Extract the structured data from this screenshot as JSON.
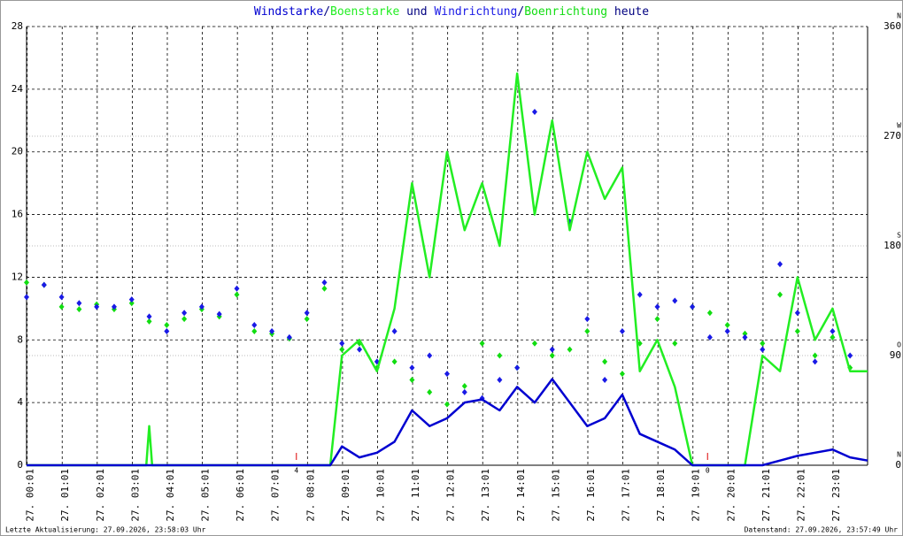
{
  "chart_data": {
    "type": "line",
    "title_connectors": [
      "/",
      " und ",
      "/",
      " heute"
    ],
    "xlim": [
      "00:00",
      "24:00"
    ],
    "xticks": [
      {
        "value": "00:01",
        "label": "27. 00:01"
      },
      {
        "value": "01:01",
        "label": "27. 01:01"
      },
      {
        "value": "02:01",
        "label": "27. 02:01"
      },
      {
        "value": "03:01",
        "label": "27. 03:01"
      },
      {
        "value": "04:01",
        "label": "27. 04:01"
      },
      {
        "value": "05:01",
        "label": "27. 05:01"
      },
      {
        "value": "06:01",
        "label": "27. 06:01"
      },
      {
        "value": "07:01",
        "label": "27. 07:01"
      },
      {
        "value": "08:01",
        "label": "27. 08:01"
      },
      {
        "value": "09:01",
        "label": "27. 09:01"
      },
      {
        "value": "10:01",
        "label": "27. 10:01"
      },
      {
        "value": "11:01",
        "label": "27. 11:01"
      },
      {
        "value": "12:01",
        "label": "27. 12:01"
      },
      {
        "value": "13:01",
        "label": "27. 13:01"
      },
      {
        "value": "14:01",
        "label": "27. 14:01"
      },
      {
        "value": "15:01",
        "label": "27. 15:01"
      },
      {
        "value": "16:01",
        "label": "27. 16:01"
      },
      {
        "value": "17:01",
        "label": "27. 17:01"
      },
      {
        "value": "18:01",
        "label": "27. 18:01"
      },
      {
        "value": "19:01",
        "label": "27. 19:01"
      },
      {
        "value": "20:01",
        "label": "27. 20:01"
      },
      {
        "value": "21:01",
        "label": "27. 21:01"
      },
      {
        "value": "22:01",
        "label": "27. 22:01"
      },
      {
        "value": "23:01",
        "label": "27. 23:01"
      }
    ],
    "ylim": [
      0,
      28
    ],
    "yticks": [
      0,
      4,
      8,
      12,
      16,
      20,
      24,
      28
    ],
    "y2lim": [
      0,
      360
    ],
    "y2ticks": [
      0,
      90,
      180,
      270,
      360
    ],
    "y2tick_directions": [
      "N",
      "O",
      "S",
      "W",
      "N"
    ],
    "grid": true,
    "line_x": [
      "00:00",
      "03:25",
      "03:30",
      "03:35",
      "08:40",
      "09:00",
      "09:30",
      "10:00",
      "10:30",
      "11:00",
      "11:30",
      "12:00",
      "12:30",
      "13:00",
      "13:30",
      "14:00",
      "14:30",
      "15:00",
      "15:30",
      "16:00",
      "16:30",
      "17:00",
      "17:30",
      "18:00",
      "18:30",
      "19:00",
      "19:30",
      "20:00",
      "20:30",
      "21:00",
      "21:30",
      "22:00",
      "22:30",
      "23:00",
      "23:30",
      "24:00"
    ],
    "scatter_x": [
      "00:00",
      "00:30",
      "01:00",
      "01:30",
      "02:00",
      "02:30",
      "03:00",
      "03:30",
      "04:00",
      "04:30",
      "05:00",
      "05:30",
      "06:00",
      "06:30",
      "07:00",
      "07:30",
      "08:00",
      "08:30",
      "09:00",
      "09:30",
      "10:00",
      "10:30",
      "11:00",
      "11:30",
      "12:00",
      "12:30",
      "13:00",
      "13:30",
      "14:00",
      "14:30",
      "15:00",
      "15:30",
      "16:00",
      "16:30",
      "17:00",
      "17:30",
      "18:00",
      "18:30",
      "19:00",
      "19:30",
      "20:00",
      "20:30",
      "21:00",
      "21:30",
      "22:00",
      "22:30",
      "23:00",
      "23:30"
    ],
    "series": [
      {
        "name": "Windstarke",
        "kind": "line",
        "color": "#0000d0",
        "values": [
          0,
          0,
          0,
          0,
          0,
          1.2,
          0.5,
          0.8,
          1.5,
          3.5,
          2.5,
          3,
          4,
          4.2,
          3.5,
          5,
          4,
          5.5,
          4,
          2.5,
          3,
          4.5,
          2,
          1.5,
          1,
          0,
          0,
          0,
          0,
          0,
          0.3,
          0.6,
          0.8,
          1,
          0.5,
          0.3
        ]
      },
      {
        "name": "Boenstarke",
        "kind": "line",
        "color": "#22ee22",
        "values": [
          0,
          0,
          2.5,
          0,
          0,
          7,
          8,
          6,
          10,
          18,
          12,
          20,
          15,
          18,
          14,
          25,
          16,
          22,
          15,
          20,
          17,
          19,
          6,
          8,
          5,
          0,
          0,
          0,
          0,
          7,
          6,
          12,
          8,
          10,
          6,
          6
        ]
      },
      {
        "name": "Windrichtung",
        "kind": "scatter",
        "axis": "y2",
        "color": "#1a1ae6",
        "values": [
          138,
          148,
          138,
          133,
          130,
          130,
          136,
          122,
          110,
          125,
          130,
          124,
          145,
          115,
          110,
          105,
          125,
          150,
          100,
          95,
          85,
          110,
          80,
          90,
          75,
          60,
          55,
          70,
          80,
          290,
          95,
          200,
          120,
          70,
          110,
          140,
          130,
          135,
          130,
          105,
          110,
          105,
          95,
          165,
          125,
          85,
          110,
          90
        ]
      },
      {
        "name": "Boenrichtung",
        "kind": "scatter",
        "axis": "y2",
        "color": "#11dd11",
        "values": [
          150,
          148,
          130,
          128,
          132,
          128,
          133,
          118,
          115,
          120,
          128,
          122,
          140,
          110,
          108,
          104,
          120,
          145,
          95,
          100,
          80,
          85,
          70,
          60,
          50,
          65,
          100,
          90,
          80,
          100,
          90,
          95,
          110,
          85,
          75,
          100,
          120,
          100,
          130,
          125,
          115,
          108,
          100,
          140,
          110,
          90,
          105,
          80
        ]
      }
    ],
    "annotations": [
      {
        "text": "4",
        "x": "07:42",
        "color": "#dd0000"
      },
      {
        "text": "0",
        "x": "19:26",
        "color": "#dd0000"
      }
    ],
    "footer_left": "Letzte Aktualisierung: 27.09.2026, 23:58:03 Uhr",
    "footer_right": "Datenstand: 27.09.2026, 23:57:49 Uhr"
  }
}
